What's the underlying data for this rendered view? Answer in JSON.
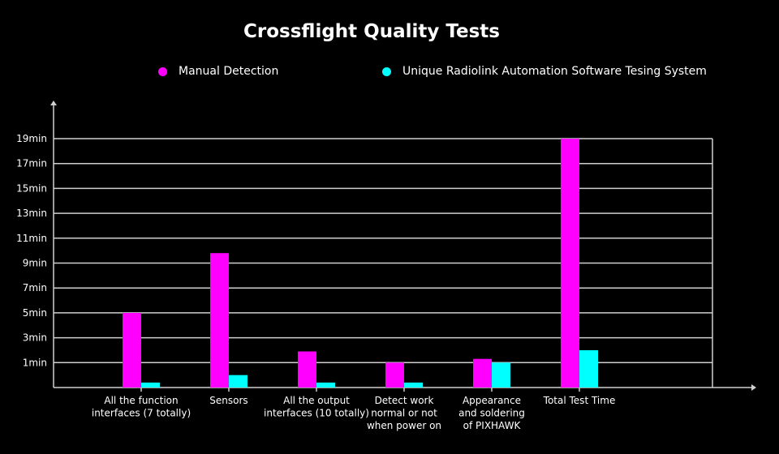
{
  "chart_data": {
    "type": "bar",
    "title": "Crossflight Quality Tests",
    "categories": [
      [
        "All the function",
        "interfaces (7 totally)"
      ],
      [
        "Sensors"
      ],
      [
        "All the output",
        "interfaces (10 totally)"
      ],
      [
        "Detect work",
        "normal or not",
        "when power on"
      ],
      [
        "Appearance",
        "and soldering",
        "of PIXHAWK"
      ],
      [
        "Total Test Time"
      ]
    ],
    "y_ticks": [
      "1min",
      "3min",
      "5min",
      "7min",
      "9min",
      "11min",
      "13min",
      "15min",
      "17min",
      "19min"
    ],
    "y_tick_values": [
      1,
      3,
      5,
      7,
      9,
      11,
      13,
      15,
      17,
      19
    ],
    "series": [
      {
        "name": "Manual Detection",
        "color": "#ff00ff",
        "values": [
          5,
          9.8,
          1.9,
          1,
          1.3,
          19
        ]
      },
      {
        "name": "Unique Radiolink Automation Software Tesing System",
        "color": "#00ffff",
        "values": [
          0.2,
          0.5,
          0.2,
          0.2,
          1,
          2
        ]
      }
    ],
    "ylabel": "",
    "xlabel": "",
    "grid": true,
    "legend_position": "top"
  }
}
